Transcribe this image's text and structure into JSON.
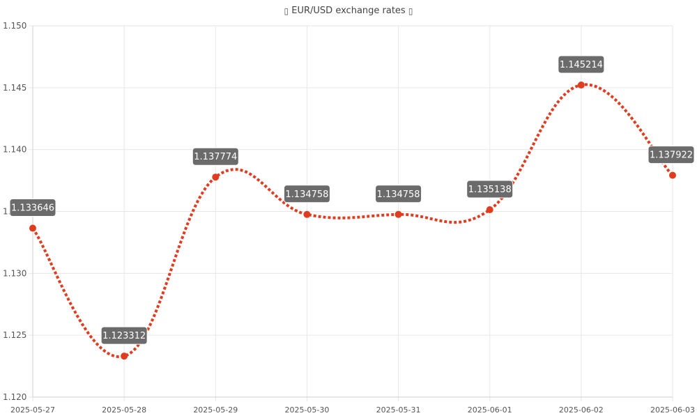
{
  "header": {
    "title": "EUR/USD exchange rates",
    "icons": [
      "euro-flag-icon",
      "us-dollar-flag-icon"
    ]
  },
  "chart_data": {
    "type": "line",
    "title": "EUR/USD exchange rates",
    "xlabel": "",
    "ylabel": "",
    "x": [
      "2025-05-27",
      "2025-05-28",
      "2025-05-29",
      "2025-05-30",
      "2025-05-31",
      "2025-06-01",
      "2025-06-02",
      "2025-06-03"
    ],
    "series": [
      {
        "values": [
          1.133646,
          1.123312,
          1.137774,
          1.134758,
          1.134758,
          1.135138,
          1.145214,
          1.137922
        ],
        "data_labels": [
          "1.133646",
          "1.123312",
          "1.137774",
          "1.134758",
          "1.134758",
          "1.135138",
          "1.145214",
          "1.137922"
        ],
        "color": "#e03c1f",
        "line_style": "dotted",
        "curve": "smooth"
      }
    ],
    "ylim": [
      1.12,
      1.15
    ],
    "yticks": [
      "1.120",
      "1.125",
      "1.130",
      "1.135",
      "1.140",
      "1.145",
      "1.150"
    ],
    "grid": true,
    "legend": "none",
    "label_box_color": "#6b6b6b",
    "label_text_color": "#ffffff",
    "grid_color": "#e6e6e6"
  }
}
